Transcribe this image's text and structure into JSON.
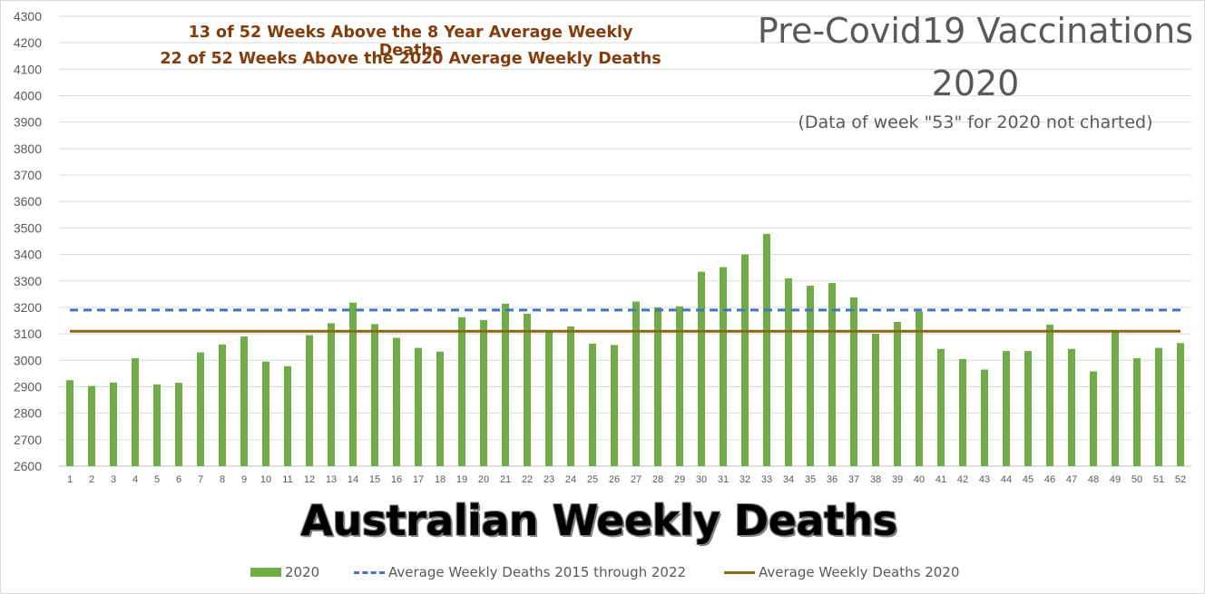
{
  "annotations": {
    "line1": "13 of 52 Weeks Above the 8 Year Average Weekly Deaths",
    "line2": "22 of 52 Weeks Above the 2020 Average Weekly Deaths"
  },
  "title": {
    "line1": "Pre-Covid19 Vaccinations",
    "line2": "2020",
    "note": "(Data of week \"53\" for 2020 not charted)"
  },
  "heading": "Australian Weekly Deaths",
  "colors": {
    "bars": "#70ad47",
    "avg_8yr": "#4472c4",
    "avg_2020": "#8b6914",
    "annotation": "#843c0c",
    "title": "#595959",
    "grid": "#d9d9d9"
  },
  "chart_data": {
    "type": "bar",
    "categories": [
      "1",
      "2",
      "3",
      "4",
      "5",
      "6",
      "7",
      "8",
      "9",
      "10",
      "11",
      "12",
      "13",
      "14",
      "15",
      "16",
      "17",
      "18",
      "19",
      "20",
      "21",
      "22",
      "23",
      "24",
      "25",
      "26",
      "27",
      "28",
      "29",
      "30",
      "31",
      "32",
      "33",
      "34",
      "35",
      "36",
      "37",
      "38",
      "39",
      "40",
      "41",
      "42",
      "43",
      "44",
      "45",
      "46",
      "47",
      "48",
      "49",
      "50",
      "51",
      "52"
    ],
    "series": [
      {
        "name": "2020",
        "values": [
          2925,
          2903,
          2916,
          3008,
          2909,
          2915,
          3030,
          3060,
          3090,
          2995,
          2978,
          3095,
          3140,
          3218,
          3137,
          3085,
          3047,
          3033,
          3163,
          3152,
          3214,
          3176,
          3110,
          3128,
          3063,
          3058,
          3222,
          3200,
          3204,
          3335,
          3352,
          3400,
          3478,
          3310,
          3282,
          3292,
          3238,
          3100,
          3145,
          3185,
          3043,
          3005,
          2965,
          3035,
          3035,
          3135,
          3043,
          2958,
          3110,
          3008,
          3047,
          3065
        ]
      }
    ],
    "reference_lines": [
      {
        "name": "Average Weekly Deaths 2015 through 2022",
        "value": 3190,
        "style": "dashed"
      },
      {
        "name": "Average Weekly Deaths 2020",
        "value": 3110,
        "style": "solid"
      }
    ],
    "ylim": [
      2600,
      4300
    ],
    "ytick_step": 100,
    "grid": true,
    "legend_position": "bottom"
  },
  "legend": {
    "bars": "2020",
    "avg_8yr": "Average Weekly Deaths 2015 through 2022",
    "avg_2020": "Average Weekly Deaths 2020"
  }
}
